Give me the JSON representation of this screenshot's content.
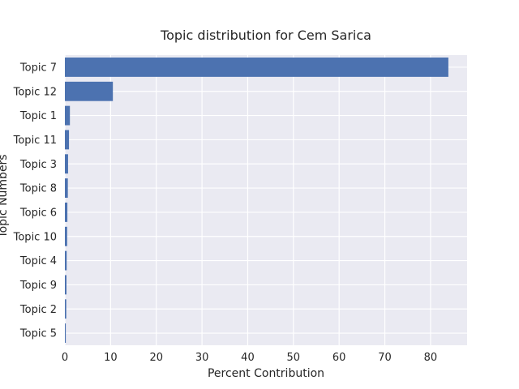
{
  "chart_data": {
    "type": "bar",
    "orientation": "horizontal",
    "title": "Topic distribution for Cem Sarica",
    "xlabel": "Percent Contribution",
    "ylabel": "Topic Numbers",
    "categories": [
      "Topic 7",
      "Topic 12",
      "Topic 1",
      "Topic 11",
      "Topic 3",
      "Topic 8",
      "Topic 6",
      "Topic 10",
      "Topic 4",
      "Topic 9",
      "Topic 2",
      "Topic 5"
    ],
    "values": [
      83.9,
      10.5,
      1.1,
      0.9,
      0.7,
      0.65,
      0.55,
      0.5,
      0.4,
      0.35,
      0.3,
      0.2
    ],
    "xlim": [
      0,
      88
    ],
    "xticks": [
      0,
      10,
      20,
      30,
      40,
      50,
      60,
      70,
      80
    ],
    "grid": true,
    "legend": "none",
    "colors": {
      "bar": "#4c72b0",
      "plot_background": "#eaeaf2",
      "grid": "#ffffff",
      "text": "#262626"
    }
  }
}
